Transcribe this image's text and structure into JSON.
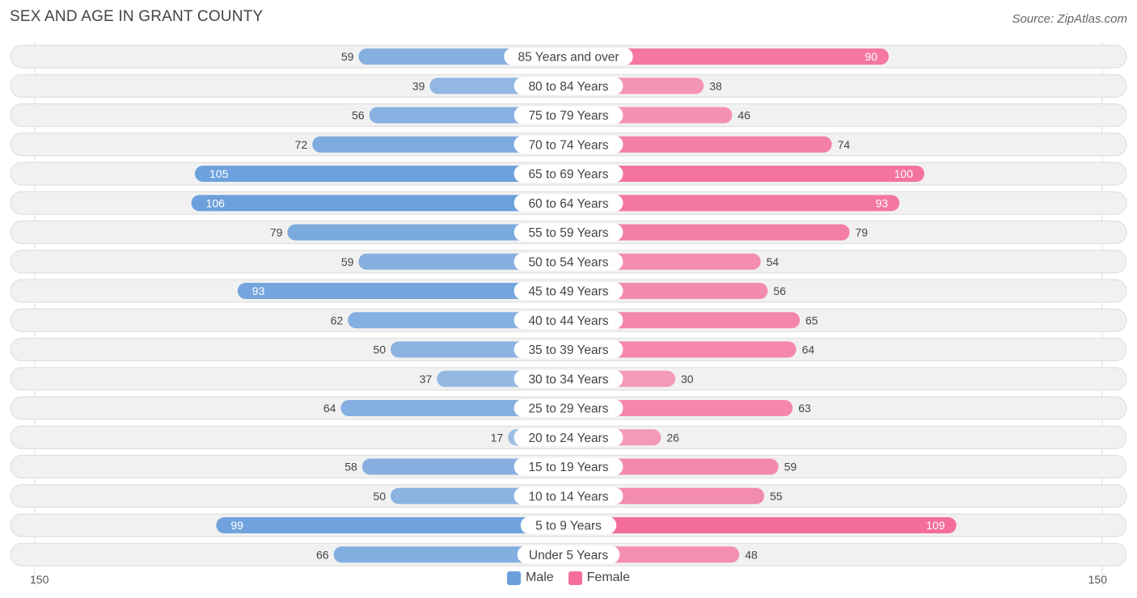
{
  "title": "SEX AND AGE IN GRANT COUNTY",
  "source": "Source: ZipAtlas.com",
  "colors": {
    "male": "#6a9fdc",
    "female": "#f46e99",
    "male_light": "#a9c8ec",
    "female_light": "#f8a8c2"
  },
  "legend": {
    "male_label": "Male",
    "female_label": "Female"
  },
  "axis": {
    "left_label": "150",
    "right_label": "150"
  },
  "chart_data": {
    "type": "bar",
    "orientation": "horizontal-diverging",
    "title": "SEX AND AGE IN GRANT COUNTY",
    "categories": [
      "85 Years and over",
      "80 to 84 Years",
      "75 to 79 Years",
      "70 to 74 Years",
      "65 to 69 Years",
      "60 to 64 Years",
      "55 to 59 Years",
      "50 to 54 Years",
      "45 to 49 Years",
      "40 to 44 Years",
      "35 to 39 Years",
      "30 to 34 Years",
      "25 to 29 Years",
      "20 to 24 Years",
      "15 to 19 Years",
      "10 to 14 Years",
      "5 to 9 Years",
      "Under 5 Years"
    ],
    "series": [
      {
        "name": "Male",
        "values": [
          59,
          39,
          56,
          72,
          105,
          106,
          79,
          59,
          93,
          62,
          50,
          37,
          64,
          17,
          58,
          50,
          99,
          66
        ]
      },
      {
        "name": "Female",
        "values": [
          90,
          38,
          46,
          74,
          100,
          93,
          79,
          54,
          56,
          65,
          64,
          30,
          63,
          26,
          59,
          55,
          109,
          48
        ]
      }
    ],
    "xlim": [
      -150,
      150
    ],
    "legend_position": "bottom-center"
  }
}
